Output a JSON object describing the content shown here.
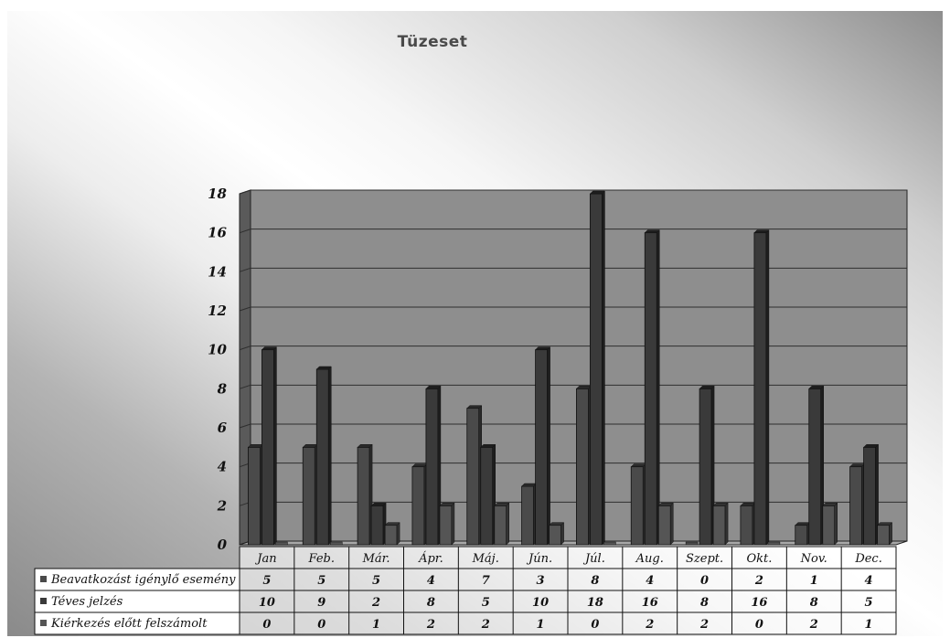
{
  "chart_data": {
    "type": "bar",
    "title": "Tüzeset",
    "categories": [
      "Jan",
      "Feb.",
      "Már.",
      "Ápr.",
      "Máj.",
      "Jún.",
      "Júl.",
      "Aug.",
      "Szept.",
      "Okt.",
      "Nov.",
      "Dec."
    ],
    "series": [
      {
        "name": "Beavatkozást igénylő esemény",
        "values": [
          5,
          5,
          5,
          4,
          7,
          3,
          8,
          4,
          0,
          2,
          1,
          4
        ]
      },
      {
        "name": "Téves jelzés",
        "values": [
          10,
          9,
          2,
          8,
          5,
          10,
          18,
          16,
          8,
          16,
          8,
          5
        ]
      },
      {
        "name": "Kiérkezés előtt felszámolt",
        "values": [
          0,
          0,
          1,
          2,
          2,
          1,
          0,
          2,
          2,
          0,
          2,
          1
        ]
      }
    ],
    "y_ticks": [
      "0",
      "2",
      "4",
      "6",
      "8",
      "10",
      "12",
      "14",
      "16",
      "18"
    ],
    "ylim": [
      0,
      18
    ],
    "grid": true,
    "legend": "data-table"
  },
  "colors": {
    "plot_fill": "#8e8e8e",
    "wall_fill": "#5a5a5a",
    "floor_fill": "#a8a8a8",
    "gridline": "#2e2e2e",
    "bar_front": [
      "#4a4a4a",
      "#3a3a3a",
      "#555555"
    ],
    "bar_side": [
      "#2a2a2a",
      "#1e1e1e",
      "#333333"
    ],
    "table_fill": "#ffffff"
  }
}
